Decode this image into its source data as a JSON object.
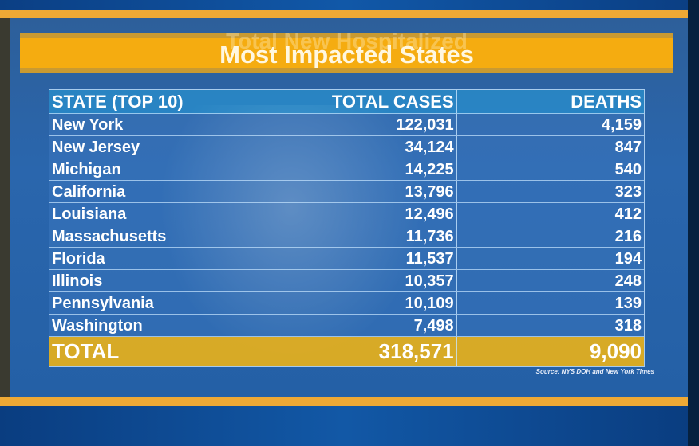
{
  "title": "Most Impacted States",
  "ghost_title": "Total New Hospitalized",
  "table": {
    "headers": [
      "STATE (TOP 10)",
      "TOTAL CASES",
      "DEATHS"
    ],
    "rows": [
      [
        "New York",
        "122,031",
        "4,159"
      ],
      [
        "New Jersey",
        "34,124",
        "847"
      ],
      [
        "Michigan",
        "14,225",
        "540"
      ],
      [
        "California",
        "13,796",
        "323"
      ],
      [
        "Louisiana",
        "12,496",
        "412"
      ],
      [
        "Massachusetts",
        "11,736",
        "216"
      ],
      [
        "Florida",
        "11,537",
        "194"
      ],
      [
        "Illinois",
        "10,357",
        "248"
      ],
      [
        "Pennsylvania",
        "10,109",
        "139"
      ],
      [
        "Washington",
        "7,498",
        "318"
      ]
    ],
    "total": [
      "TOTAL",
      "318,571",
      "9,090"
    ]
  },
  "source": "Source: NYS DOH and New York Times",
  "colors": {
    "accent_orange": "#f5ac10",
    "background_blue": "#2a66ad"
  }
}
